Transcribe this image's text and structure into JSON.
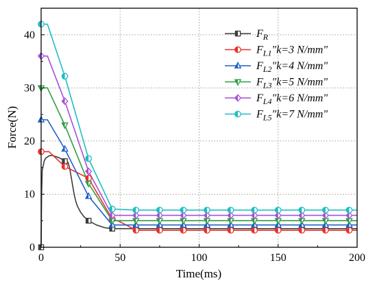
{
  "chart_data": {
    "type": "line",
    "xlabel": "Time(ms)",
    "ylabel": "Force(N)",
    "xlim": [
      0,
      200
    ],
    "ylim": [
      0,
      45
    ],
    "xticks": [
      0,
      50,
      100,
      150,
      200
    ],
    "yticks": [
      0,
      10,
      20,
      30,
      40
    ],
    "grid": true,
    "legend_position": "top-right",
    "series": [
      {
        "name": "F_R",
        "label_main": "F",
        "label_sub": "R",
        "label_rest": "",
        "color": "#3d3d3d",
        "marker": "square",
        "x": [
          0,
          0.3,
          0.7,
          2,
          3,
          5,
          7,
          9,
          11,
          13,
          14.5,
          15.5,
          17,
          18,
          19,
          20,
          21,
          22,
          23,
          25,
          27,
          30,
          35,
          40,
          45,
          50,
          60,
          75,
          90,
          105,
          120,
          135,
          150,
          165,
          180,
          195,
          200
        ],
        "y": [
          0,
          10,
          14.5,
          16.3,
          16.8,
          17.2,
          17.3,
          17.1,
          16.9,
          16.6,
          16.4,
          16.3,
          16,
          15,
          13.3,
          11.5,
          9.8,
          8.6,
          7.7,
          6.6,
          5.8,
          5.0,
          4.2,
          3.7,
          3.5,
          3.5,
          3.5,
          3.5,
          3.5,
          3.5,
          3.5,
          3.5,
          3.5,
          3.5,
          3.5,
          3.5,
          3.5
        ],
        "markers_x": [
          0,
          15,
          30,
          45,
          60,
          75,
          90,
          105,
          120,
          135,
          150,
          165,
          180,
          195
        ],
        "markers_y": [
          0,
          16.2,
          5.0,
          3.5,
          3.5,
          3.5,
          3.5,
          3.5,
          3.5,
          3.5,
          3.5,
          3.5,
          3.5,
          3.5
        ]
      },
      {
        "name": "F_L1\"k=3 N/mm\"",
        "label_main": "F",
        "label_sub": "L1",
        "label_rest": "\"k=3 N/mm\"",
        "color": "#e8312b",
        "marker": "circle",
        "x": [
          0,
          3,
          5,
          15,
          30,
          45,
          50,
          55,
          60,
          75,
          90,
          105,
          120,
          135,
          150,
          165,
          180,
          195,
          200
        ],
        "y": [
          18,
          18,
          18,
          15.2,
          13,
          5.3,
          4.8,
          4.0,
          3.2,
          3.2,
          3.2,
          3.2,
          3.2,
          3.2,
          3.2,
          3.2,
          3.2,
          3.2,
          3.2
        ],
        "markers_x": [
          0,
          15,
          30,
          45,
          60,
          75,
          90,
          105,
          120,
          135,
          150,
          165,
          180,
          195
        ],
        "markers_y": [
          18,
          15.2,
          13,
          5.3,
          3.2,
          3.2,
          3.2,
          3.2,
          3.2,
          3.2,
          3.2,
          3.2,
          3.2,
          3.2
        ]
      },
      {
        "name": "F_L2\"k=4 N/mm\"",
        "label_main": "F",
        "label_sub": "L2",
        "label_rest": "\"k=4 N/mm\"",
        "color": "#1f5fc7",
        "marker": "triangle-up",
        "x": [
          0,
          4,
          15,
          30,
          45,
          60,
          75,
          90,
          105,
          120,
          135,
          150,
          165,
          180,
          195,
          200
        ],
        "y": [
          24,
          24,
          18.5,
          9.6,
          4.2,
          4.2,
          4.2,
          4.2,
          4.2,
          4.2,
          4.2,
          4.2,
          4.2,
          4.2,
          4.2,
          4.2
        ],
        "markers_x": [
          0,
          15,
          30,
          45,
          60,
          75,
          90,
          105,
          120,
          135,
          150,
          165,
          180,
          195
        ],
        "markers_y": [
          24,
          18.5,
          9.6,
          4.2,
          4.2,
          4.2,
          4.2,
          4.2,
          4.2,
          4.2,
          4.2,
          4.2,
          4.2,
          4.2
        ]
      },
      {
        "name": "F_L3\"k=5 N/mm\"",
        "label_main": "F",
        "label_sub": "L3",
        "label_rest": "\"k=5 N/mm\"",
        "color": "#2e9e44",
        "marker": "triangle-down",
        "x": [
          0,
          4,
          15,
          30,
          45,
          60,
          75,
          90,
          105,
          120,
          135,
          150,
          165,
          180,
          195,
          200
        ],
        "y": [
          30,
          30,
          23,
          12,
          5.0,
          5.0,
          5.0,
          5.0,
          5.0,
          5.0,
          5.0,
          5.0,
          5.0,
          5.0,
          5.0,
          5.0
        ],
        "markers_x": [
          0,
          15,
          30,
          45,
          60,
          75,
          90,
          105,
          120,
          135,
          150,
          165,
          180,
          195
        ],
        "markers_y": [
          30,
          23,
          12,
          5.0,
          5.0,
          5.0,
          5.0,
          5.0,
          5.0,
          5.0,
          5.0,
          5.0,
          5.0,
          5.0
        ]
      },
      {
        "name": "F_L4\"k=6 N/mm\"",
        "label_main": "F",
        "label_sub": "L4",
        "label_rest": "\"k=6 N/mm\"",
        "color": "#a64fd8",
        "marker": "diamond",
        "x": [
          0,
          4,
          15,
          30,
          45,
          60,
          75,
          90,
          105,
          120,
          135,
          150,
          165,
          180,
          195,
          200
        ],
        "y": [
          36,
          36,
          27.5,
          14.3,
          6.0,
          6.0,
          6.0,
          6.0,
          6.0,
          6.0,
          6.0,
          6.0,
          6.0,
          6.0,
          6.0,
          6.0
        ],
        "markers_x": [
          0,
          15,
          30,
          45,
          60,
          75,
          90,
          105,
          120,
          135,
          150,
          165,
          180,
          195
        ],
        "markers_y": [
          36,
          27.5,
          14.3,
          6.0,
          6.0,
          6.0,
          6.0,
          6.0,
          6.0,
          6.0,
          6.0,
          6.0,
          6.0,
          6.0
        ]
      },
      {
        "name": "F_L5\"k=7 N/mm\"",
        "label_main": "F",
        "label_sub": "L5",
        "label_rest": "\"k=7 N/mm\"",
        "color": "#1fbcc4",
        "marker": "circle-half",
        "x": [
          0,
          4,
          15,
          30,
          45,
          60,
          75,
          90,
          105,
          120,
          135,
          150,
          165,
          180,
          195,
          200
        ],
        "y": [
          42,
          42,
          32.2,
          16.7,
          7.2,
          7.0,
          7.0,
          7.0,
          7.0,
          7.0,
          7.0,
          7.0,
          7.0,
          7.0,
          7.0,
          7.0
        ],
        "markers_x": [
          0,
          15,
          30,
          45,
          60,
          75,
          90,
          105,
          120,
          135,
          150,
          165,
          180,
          195
        ],
        "markers_y": [
          42,
          32.2,
          16.7,
          7.2,
          7.0,
          7.0,
          7.0,
          7.0,
          7.0,
          7.0,
          7.0,
          7.0,
          7.0,
          7.0
        ]
      }
    ]
  }
}
